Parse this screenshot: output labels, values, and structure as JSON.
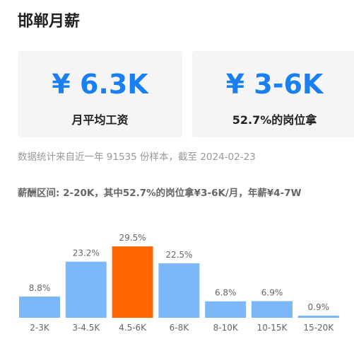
{
  "header": {
    "title": "邯郸月薪"
  },
  "cards": [
    {
      "value": "¥ 6.3K",
      "label": "月平均工资"
    },
    {
      "value": "¥ 3-6K",
      "label": "52.7%的岗位拿"
    }
  ],
  "note": "数据统计来自近一年 91535 份样本，截至 2024-02-23",
  "summary": "薪酬区间: 2-20K，其中52.7%的岗位拿¥3-6K/月，年薪¥4-7W",
  "chart_data": {
    "type": "bar",
    "categories": [
      "2-3K",
      "3-4.5K",
      "4.5-6K",
      "6-8K",
      "8-10K",
      "10-15K",
      "15-20K"
    ],
    "values": [
      8.8,
      23.2,
      29.5,
      22.5,
      6.8,
      6.9,
      0.9
    ],
    "value_labels": [
      "8.8%",
      "23.2%",
      "29.5%",
      "22.5%",
      "6.8%",
      "6.9%",
      "0.9%"
    ],
    "colors": [
      "#7cb8f8",
      "#7cb8f8",
      "#ff6600",
      "#7cb8f8",
      "#7cb8f8",
      "#7cb8f8",
      "#7cb8f8"
    ]
  }
}
